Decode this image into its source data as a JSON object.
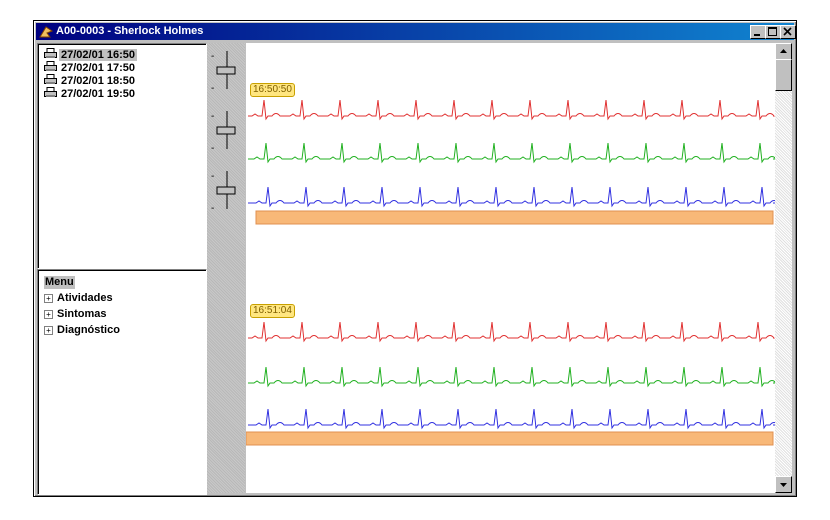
{
  "window": {
    "title": "A00-0003 - Sherlock Holmes"
  },
  "records": [
    "27/02/01 16:50",
    "27/02/01 17:50",
    "27/02/01 18:50",
    "27/02/01 19:50"
  ],
  "menu": {
    "title": "Menu",
    "items": [
      "Atividades",
      "Sintomas",
      "Diagnóstico"
    ]
  },
  "strips": [
    {
      "time": "16:50:50"
    },
    {
      "time": "16:51:04"
    }
  ]
}
